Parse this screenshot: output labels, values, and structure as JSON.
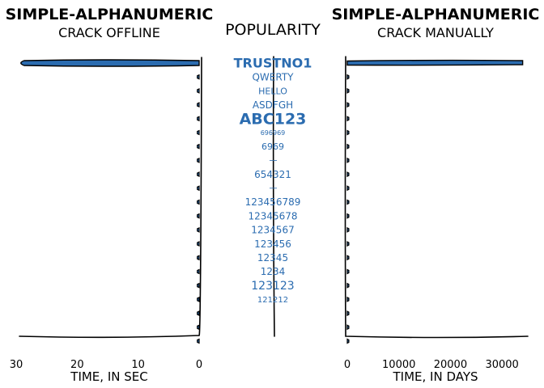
{
  "colors": {
    "accent": "#2b6cb0",
    "ink": "#000000",
    "background": "#ffffff"
  },
  "center": {
    "title": "POPULARITY"
  },
  "chart_data": [
    {
      "type": "bar",
      "orientation": "horizontal",
      "title": "SIMPLE-ALPHANUMERIC",
      "subtitle": "CRACK OFFLINE",
      "xlabel": "TIME, IN SEC",
      "ylabel": "",
      "xlim": [
        30,
        0
      ],
      "x_inverted": true,
      "xticks": [
        30,
        20,
        10,
        0
      ],
      "tick_labels": [
        "30",
        "20",
        "10",
        "0"
      ],
      "categories": [
        "TRUSTNO1",
        "QWERTY",
        "HELLO",
        "ASDFGH",
        "ABC123",
        "696969",
        "6969",
        "",
        "654321",
        "",
        "123456789",
        "12345678",
        "1234567",
        "123456",
        "12345",
        "1234",
        "123123",
        "121212",
        "",
        "",
        ""
      ],
      "values": [
        29.5,
        0.3,
        0.3,
        0.3,
        0.3,
        0.3,
        0.3,
        0.3,
        0.3,
        0.3,
        0.3,
        0.3,
        0.3,
        0.3,
        0.3,
        0.3,
        0.3,
        0.3,
        0.3,
        0.3,
        0.3
      ]
    },
    {
      "type": "bar",
      "orientation": "horizontal",
      "title": "SIMPLE-ALPHANUMERIC",
      "subtitle": "CRACK MANUALLY",
      "xlabel": "TIME, IN DAYS",
      "ylabel": "",
      "xlim": [
        0,
        35000
      ],
      "xticks": [
        0,
        10000,
        20000,
        30000
      ],
      "tick_labels": [
        "0",
        "10000",
        "20000",
        "30000"
      ],
      "categories": [
        "TRUSTNO1",
        "QWERTY",
        "HELLO",
        "ASDFGH",
        "ABC123",
        "696969",
        "6969",
        "",
        "654321",
        "",
        "123456789",
        "12345678",
        "1234567",
        "123456",
        "12345",
        "1234",
        "123123",
        "121212",
        "",
        "",
        ""
      ],
      "values": [
        34000,
        300,
        300,
        300,
        300,
        300,
        300,
        300,
        300,
        300,
        300,
        300,
        300,
        300,
        300,
        300,
        300,
        300,
        300,
        300,
        300
      ]
    },
    {
      "type": "word-list",
      "words": [
        {
          "text": "TRUSTNO1",
          "popularity": 16
        },
        {
          "text": "QWERTY",
          "popularity": 12
        },
        {
          "text": "HELLO",
          "popularity": 11
        },
        {
          "text": "ASDFGH",
          "popularity": 12
        },
        {
          "text": "ABC123",
          "popularity": 19
        },
        {
          "text": "696969",
          "popularity": 8
        },
        {
          "text": "6969",
          "popularity": 11
        },
        {
          "text": "654321",
          "popularity": 12
        },
        {
          "text": "123456789",
          "popularity": 12
        },
        {
          "text": "12345678",
          "popularity": 12
        },
        {
          "text": "1234567",
          "popularity": 12
        },
        {
          "text": "123456",
          "popularity": 12
        },
        {
          "text": "12345",
          "popularity": 12
        },
        {
          "text": "1234",
          "popularity": 12
        },
        {
          "text": "123123",
          "popularity": 14
        },
        {
          "text": "121212",
          "popularity": 10
        }
      ]
    }
  ]
}
